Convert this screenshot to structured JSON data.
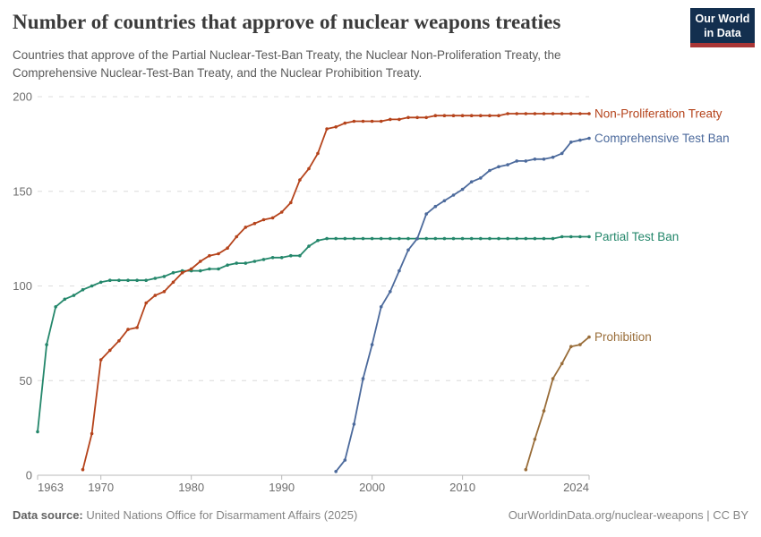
{
  "header": {
    "title": "Number of countries that approve of nuclear weapons treaties",
    "subtitle": "Countries that approve of the Partial Nuclear-Test-Ban Treaty, the Nuclear Non-Proliferation Treaty, the Comprehensive Nuclear-Test-Ban Treaty, and the Nuclear Prohibition Treaty.",
    "logo": {
      "line1": "Our World",
      "line2": "in Data",
      "bg_color": "#132f4f",
      "accent_color": "#a93636"
    }
  },
  "footer": {
    "source_label": "Data source:",
    "source_text": " United Nations Office for Disarmament Affairs (2025)",
    "right_text": "OurWorldinData.org/nuclear-weapons | CC BY"
  },
  "chart_data": {
    "type": "line",
    "legend": "line-end-labels",
    "x_axis": {
      "range": [
        1963,
        2024
      ],
      "ticks": [
        1963,
        1970,
        1980,
        1990,
        2000,
        2010,
        2024
      ]
    },
    "y_axis": {
      "range": [
        0,
        200
      ],
      "ticks": [
        0,
        50,
        100,
        150,
        200
      ],
      "gridlines": "dashed"
    },
    "series": [
      {
        "name": "Partial Test Ban",
        "color": "#24876B",
        "start_year": 1963,
        "values": [
          23,
          69,
          89,
          93,
          95,
          98,
          100,
          102,
          103,
          103,
          103,
          103,
          103,
          104,
          105,
          107,
          108,
          108,
          108,
          109,
          109,
          111,
          112,
          112,
          113,
          114,
          115,
          115,
          116,
          116,
          121,
          124,
          125,
          125,
          125,
          125,
          125,
          125,
          125,
          125,
          125,
          125,
          125,
          125,
          125,
          125,
          125,
          125,
          125,
          125,
          125,
          125,
          125,
          125,
          125,
          125,
          125,
          125,
          126,
          126,
          126,
          126
        ]
      },
      {
        "name": "Non-Proliferation Treaty",
        "color": "#B5431B",
        "start_year": 1968,
        "values": [
          3,
          22,
          61,
          66,
          71,
          77,
          78,
          91,
          95,
          97,
          102,
          107,
          109,
          113,
          116,
          117,
          120,
          126,
          131,
          133,
          135,
          136,
          139,
          144,
          156,
          162,
          170,
          183,
          184,
          186,
          187,
          187,
          187,
          187,
          188,
          188,
          189,
          189,
          189,
          190,
          190,
          190,
          190,
          190,
          190,
          190,
          190,
          191,
          191,
          191,
          191,
          191,
          191,
          191,
          191,
          191,
          191
        ]
      },
      {
        "name": "Comprehensive Test Ban",
        "color": "#4C6A9C",
        "start_year": 1996,
        "values": [
          2,
          8,
          27,
          51,
          69,
          89,
          97,
          108,
          119,
          125,
          138,
          142,
          145,
          148,
          151,
          155,
          157,
          161,
          163,
          164,
          166,
          166,
          167,
          167,
          168,
          170,
          176,
          177,
          178
        ]
      },
      {
        "name": "Prohibition",
        "color": "#996D39",
        "start_year": 2017,
        "values": [
          3,
          19,
          34,
          51,
          59,
          68,
          69,
          73
        ]
      }
    ]
  }
}
